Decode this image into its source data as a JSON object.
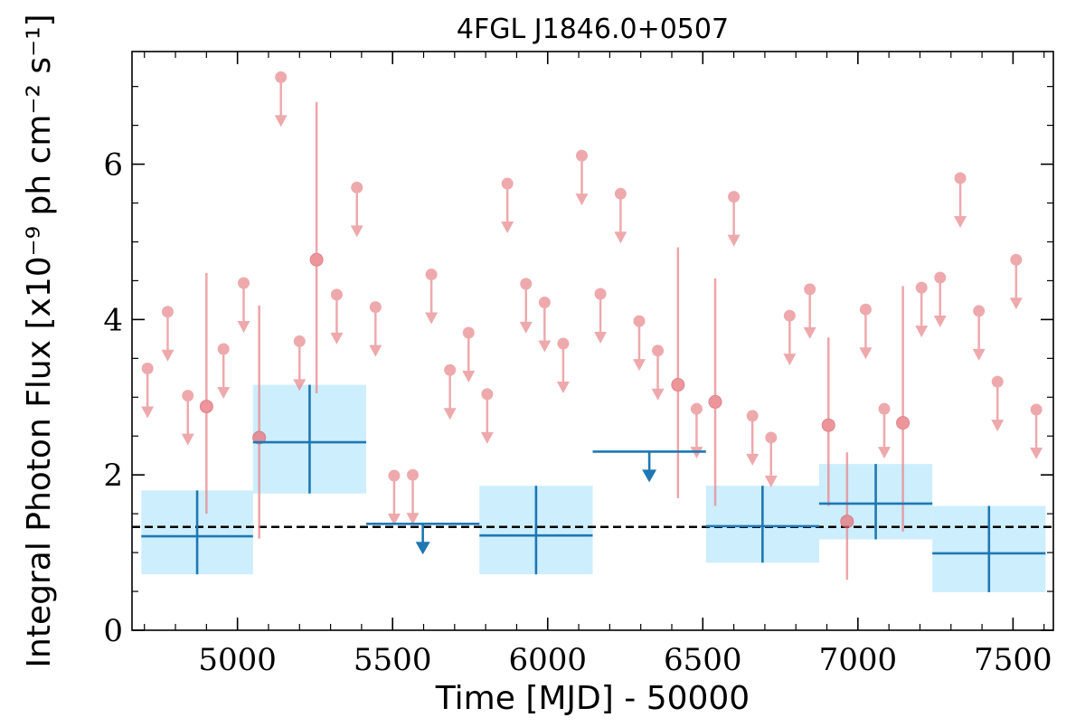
{
  "chart_data": {
    "type": "scatter",
    "title": "4FGL J1846.0+0507",
    "xlabel": "Time [MJD] - 50000",
    "ylabel": "Integral Photon Flux [x10⁻⁹ ph cm⁻² s⁻¹]",
    "xlim": [
      4660,
      7630
    ],
    "ylim": [
      0,
      7.45
    ],
    "x_ticks": [
      5000,
      5500,
      6000,
      6500,
      7000,
      7500
    ],
    "y_ticks": [
      0,
      2,
      4,
      6
    ],
    "mean_flux": 1.33,
    "colors": {
      "short_bins": "#e8888e",
      "long_bins": "#1f77b4",
      "long_bins_band": "#cdeefc",
      "mean_line": "#000000"
    },
    "series": [
      {
        "measurements": [
          {
            "x": 4900,
            "y": 2.88,
            "lo": 1.5,
            "hi": 4.6
          },
          {
            "x": 5070,
            "y": 2.48,
            "lo": 1.18,
            "hi": 4.18
          },
          {
            "x": 5255,
            "y": 4.77,
            "lo": 3.05,
            "hi": 6.8
          },
          {
            "x": 6420,
            "y": 3.16,
            "lo": 1.7,
            "hi": 4.93
          },
          {
            "x": 6540,
            "y": 2.94,
            "lo": 1.6,
            "hi": 4.53
          },
          {
            "x": 6905,
            "y": 2.64,
            "lo": 1.6,
            "hi": 3.77
          },
          {
            "x": 6965,
            "y": 1.4,
            "lo": 0.65,
            "hi": 2.29
          },
          {
            "x": 7145,
            "y": 2.67,
            "lo": 1.27,
            "hi": 4.43
          }
        ],
        "upper_limits": [
          {
            "x": 4710,
            "y": 3.37
          },
          {
            "x": 4775,
            "y": 4.1
          },
          {
            "x": 4840,
            "y": 3.02
          },
          {
            "x": 4955,
            "y": 3.62
          },
          {
            "x": 5020,
            "y": 4.47
          },
          {
            "x": 5140,
            "y": 7.12
          },
          {
            "x": 5200,
            "y": 3.72
          },
          {
            "x": 5320,
            "y": 4.32
          },
          {
            "x": 5385,
            "y": 5.7
          },
          {
            "x": 5445,
            "y": 4.16
          },
          {
            "x": 5505,
            "y": 1.99
          },
          {
            "x": 5565,
            "y": 2.0
          },
          {
            "x": 5625,
            "y": 4.58
          },
          {
            "x": 5685,
            "y": 3.35
          },
          {
            "x": 5745,
            "y": 3.83
          },
          {
            "x": 5805,
            "y": 3.04
          },
          {
            "x": 5870,
            "y": 5.75
          },
          {
            "x": 5930,
            "y": 4.46
          },
          {
            "x": 5990,
            "y": 4.22
          },
          {
            "x": 6050,
            "y": 3.69
          },
          {
            "x": 6110,
            "y": 6.11
          },
          {
            "x": 6170,
            "y": 4.33
          },
          {
            "x": 6235,
            "y": 5.62
          },
          {
            "x": 6295,
            "y": 3.98
          },
          {
            "x": 6355,
            "y": 3.6
          },
          {
            "x": 6480,
            "y": 2.85
          },
          {
            "x": 6600,
            "y": 5.58
          },
          {
            "x": 6660,
            "y": 2.76
          },
          {
            "x": 6720,
            "y": 2.48
          },
          {
            "x": 6780,
            "y": 4.05
          },
          {
            "x": 6845,
            "y": 4.39
          },
          {
            "x": 7025,
            "y": 4.13
          },
          {
            "x": 7085,
            "y": 2.85
          },
          {
            "x": 7205,
            "y": 4.41
          },
          {
            "x": 7265,
            "y": 4.54
          },
          {
            "x": 7330,
            "y": 5.82
          },
          {
            "x": 7390,
            "y": 4.11
          },
          {
            "x": 7450,
            "y": 3.2
          },
          {
            "x": 7510,
            "y": 4.77
          },
          {
            "x": 7575,
            "y": 2.84
          }
        ]
      },
      {
        "measurements": [
          {
            "x0": 4690,
            "x1": 5050,
            "y": 1.21,
            "lo": 0.72,
            "hi": 1.8
          },
          {
            "x0": 5050,
            "x1": 5415,
            "y": 2.42,
            "lo": 1.76,
            "hi": 3.16
          },
          {
            "x0": 5780,
            "x1": 6145,
            "y": 1.22,
            "lo": 0.72,
            "hi": 1.86
          },
          {
            "x0": 6510,
            "x1": 6875,
            "y": 1.34,
            "lo": 0.87,
            "hi": 1.86
          },
          {
            "x0": 6875,
            "x1": 7240,
            "y": 1.63,
            "lo": 1.17,
            "hi": 2.14
          },
          {
            "x0": 7240,
            "x1": 7605,
            "y": 0.99,
            "lo": 0.49,
            "hi": 1.6
          }
        ],
        "upper_limits": [
          {
            "x0": 5415,
            "x1": 5780,
            "y": 1.37
          },
          {
            "x0": 6145,
            "x1": 6510,
            "y": 2.3
          }
        ]
      }
    ]
  }
}
